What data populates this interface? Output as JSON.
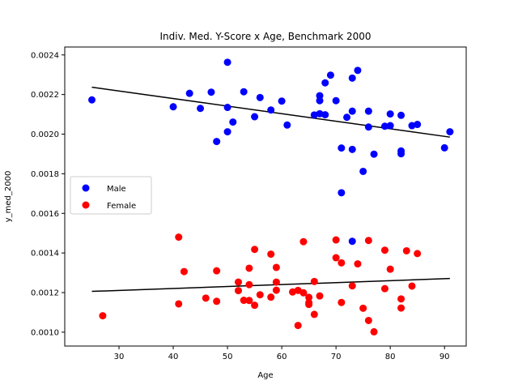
{
  "chart_data": {
    "type": "scatter",
    "title": "Indiv. Med. Y-Score x Age, Benchmark 2000",
    "xlabel": "Age",
    "ylabel": "y_med_2000",
    "xlim": [
      20,
      94
    ],
    "ylim": [
      0.00093,
      0.00244
    ],
    "xticks": [
      30,
      40,
      50,
      60,
      70,
      80,
      90
    ],
    "xtick_labels": [
      "30",
      "40",
      "50",
      "60",
      "70",
      "80",
      "90"
    ],
    "yticks": [
      0.001,
      0.0012,
      0.0014,
      0.0016,
      0.0018,
      0.002,
      0.0022,
      0.0024
    ],
    "ytick_labels": [
      "0.0010",
      "0.0012",
      "0.0014",
      "0.0016",
      "0.0018",
      "0.0020",
      "0.0022",
      "0.0024"
    ],
    "grid": false,
    "legend_position": "center-left",
    "series": [
      {
        "name": "Male",
        "color": "#0000ff",
        "points": [
          [
            25,
            0.002173
          ],
          [
            40,
            0.002138
          ],
          [
            43,
            0.002206
          ],
          [
            45,
            0.00213
          ],
          [
            47,
            0.002212
          ],
          [
            48,
            0.001963
          ],
          [
            50,
            0.002363
          ],
          [
            50,
            0.002135
          ],
          [
            50,
            0.002012
          ],
          [
            51,
            0.002061
          ],
          [
            53,
            0.002214
          ],
          [
            55,
            0.002088
          ],
          [
            56,
            0.002185
          ],
          [
            58,
            0.002122
          ],
          [
            60,
            0.002167
          ],
          [
            61,
            0.002046
          ],
          [
            66,
            0.002097
          ],
          [
            67,
            0.002194
          ],
          [
            67,
            0.002169
          ],
          [
            67,
            0.002103
          ],
          [
            68,
            0.002259
          ],
          [
            68,
            0.002098
          ],
          [
            69,
            0.002298
          ],
          [
            70,
            0.002169
          ],
          [
            71,
            0.00193
          ],
          [
            71,
            0.001704
          ],
          [
            72,
            0.002085
          ],
          [
            73,
            0.002116
          ],
          [
            73,
            0.002283
          ],
          [
            73,
            0.001923
          ],
          [
            73,
            0.001459
          ],
          [
            74,
            0.002322
          ],
          [
            75,
            0.001812
          ],
          [
            76,
            0.002116
          ],
          [
            76,
            0.002036
          ],
          [
            77,
            0.001899
          ],
          [
            79,
            0.00204
          ],
          [
            80,
            0.002102
          ],
          [
            80,
            0.002043
          ],
          [
            82,
            0.002095
          ],
          [
            82,
            0.001915
          ],
          [
            82,
            0.001901
          ],
          [
            84,
            0.002043
          ],
          [
            85,
            0.002049
          ],
          [
            90,
            0.001931
          ],
          [
            91,
            0.002012
          ]
        ]
      },
      {
        "name": "Female",
        "color": "#ff0000",
        "points": [
          [
            27,
            0.001083
          ],
          [
            41,
            0.00148
          ],
          [
            41,
            0.001143
          ],
          [
            42,
            0.001306
          ],
          [
            46,
            0.001172
          ],
          [
            48,
            0.00131
          ],
          [
            48,
            0.001156
          ],
          [
            52,
            0.001253
          ],
          [
            52,
            0.00121
          ],
          [
            53,
            0.001161
          ],
          [
            54,
            0.001323
          ],
          [
            54,
            0.00124
          ],
          [
            54,
            0.00116
          ],
          [
            55,
            0.001418
          ],
          [
            55,
            0.001136
          ],
          [
            56,
            0.001189
          ],
          [
            58,
            0.001394
          ],
          [
            58,
            0.001177
          ],
          [
            59,
            0.001327
          ],
          [
            59,
            0.001253
          ],
          [
            59,
            0.001212
          ],
          [
            62,
            0.001203
          ],
          [
            63,
            0.001211
          ],
          [
            63,
            0.001034
          ],
          [
            64,
            0.001457
          ],
          [
            64,
            0.001199
          ],
          [
            65,
            0.001176
          ],
          [
            65,
            0.001149
          ],
          [
            65,
            0.00114
          ],
          [
            66,
            0.001256
          ],
          [
            66,
            0.00109
          ],
          [
            67,
            0.001183
          ],
          [
            70,
            0.001466
          ],
          [
            70,
            0.001376
          ],
          [
            71,
            0.00135
          ],
          [
            71,
            0.00115
          ],
          [
            73,
            0.001234
          ],
          [
            74,
            0.001345
          ],
          [
            75,
            0.001121
          ],
          [
            76,
            0.001463
          ],
          [
            76,
            0.001059
          ],
          [
            77,
            0.001002
          ],
          [
            79,
            0.001414
          ],
          [
            79,
            0.00122
          ],
          [
            80,
            0.001318
          ],
          [
            82,
            0.001168
          ],
          [
            82,
            0.001122
          ],
          [
            83,
            0.001411
          ],
          [
            84,
            0.001233
          ],
          [
            85,
            0.001397
          ]
        ]
      }
    ],
    "trend_lines": [
      {
        "for": "Male",
        "color": "#000000",
        "x": [
          25,
          91
        ],
        "y": [
          0.002237,
          0.001985
        ]
      },
      {
        "for": "Female",
        "color": "#000000",
        "x": [
          25,
          91
        ],
        "y": [
          0.001206,
          0.001271
        ]
      }
    ]
  }
}
